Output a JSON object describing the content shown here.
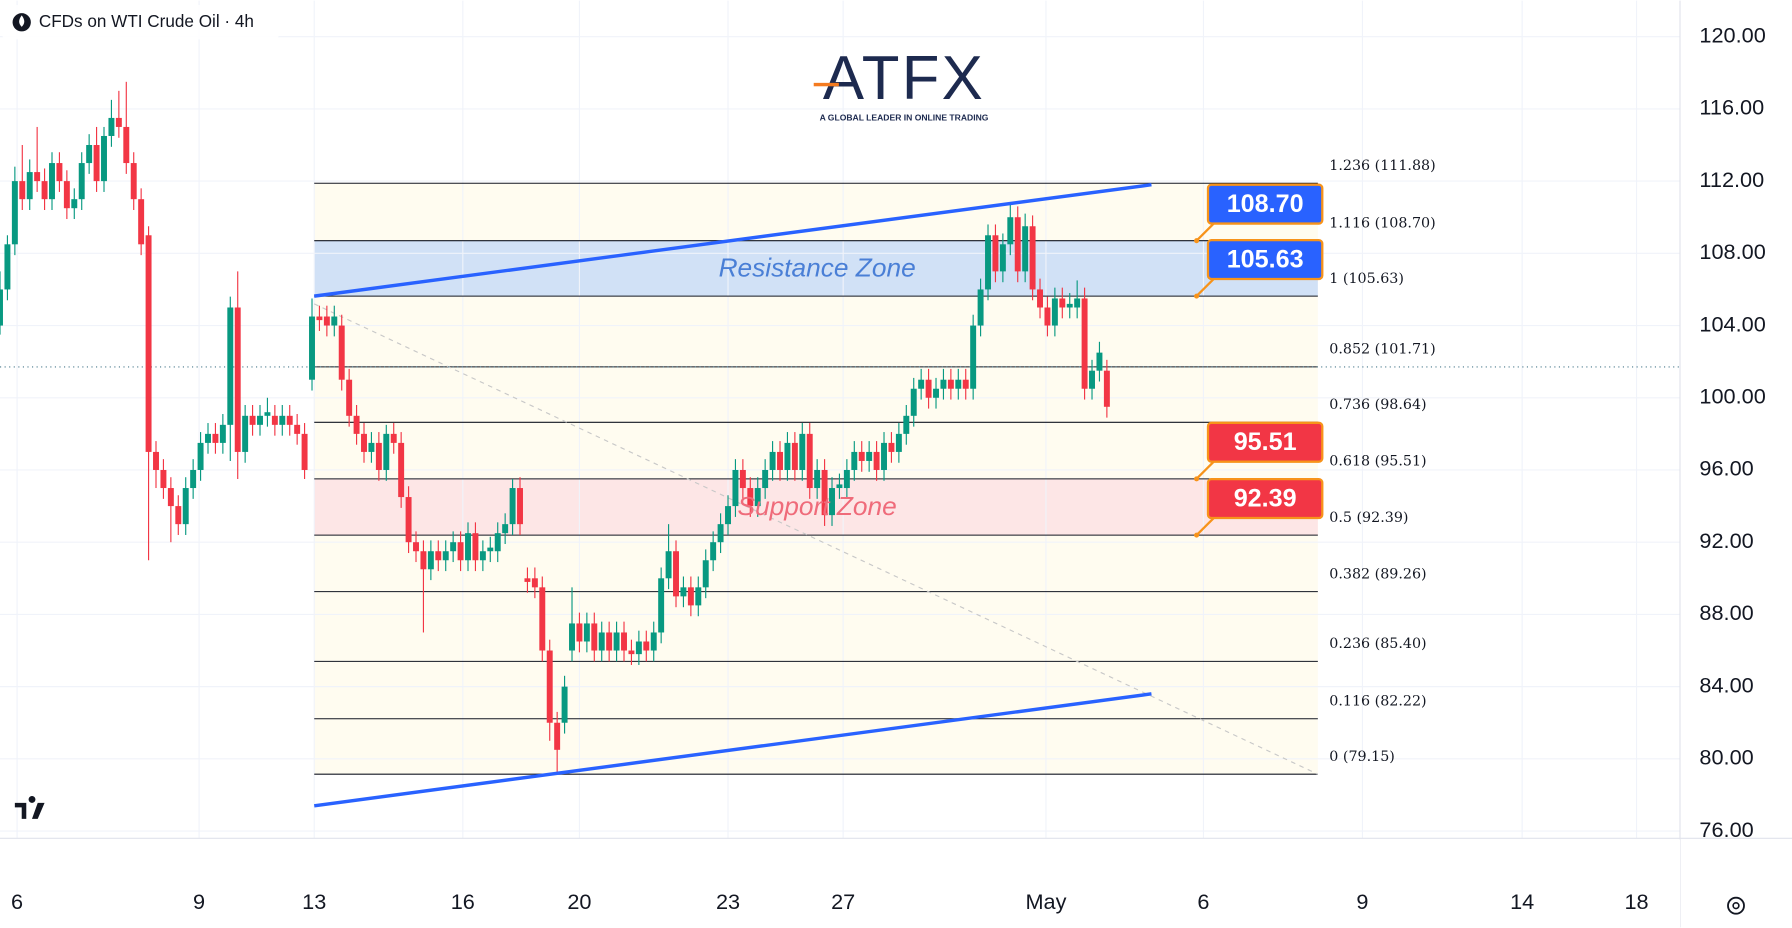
{
  "chart_data": {
    "type": "candlestick",
    "title": "CFDs on WTI Crude Oil · 4h",
    "brand": "ATFX",
    "brand_tagline": "A GLOBAL LEADER IN ONLINE TRADING",
    "xlim": [
      0,
      226.15
    ],
    "ylim": [
      75.6,
      122.0
    ],
    "grid": true,
    "up_color": "#089981",
    "down_color": "#f23645",
    "xticks": [
      {
        "value": 2.3,
        "label": "6"
      },
      {
        "value": 26.8,
        "label": "9"
      },
      {
        "value": 42.3,
        "label": "13"
      },
      {
        "value": 62.3,
        "label": "16"
      },
      {
        "value": 78,
        "label": "20"
      },
      {
        "value": 98,
        "label": "23"
      },
      {
        "value": 113.5,
        "label": "27"
      },
      {
        "value": 140.8,
        "label": "May"
      },
      {
        "value": 162,
        "label": "6"
      },
      {
        "value": 183.4,
        "label": "9"
      },
      {
        "value": 204.9,
        "label": "14"
      },
      {
        "value": 220.3,
        "label": "18"
      }
    ],
    "yticks": [
      {
        "value": 120,
        "label": "120.00"
      },
      {
        "value": 116,
        "label": "116.00"
      },
      {
        "value": 112,
        "label": "112.00"
      },
      {
        "value": 108,
        "label": "108.00"
      },
      {
        "value": 104,
        "label": "104.00"
      },
      {
        "value": 100,
        "label": "100.00"
      },
      {
        "value": 96,
        "label": "96.00"
      },
      {
        "value": 92,
        "label": "92.00"
      },
      {
        "value": 88,
        "label": "88.00"
      },
      {
        "value": 84,
        "label": "84.00"
      },
      {
        "value": 80,
        "label": "80.00"
      },
      {
        "value": 76,
        "label": "76.00"
      }
    ],
    "x": [
      0,
      1,
      2,
      3,
      4,
      5,
      6,
      7,
      8,
      9,
      10,
      11,
      12,
      13,
      14,
      15,
      16,
      17,
      18,
      19,
      20,
      21,
      22,
      23,
      24,
      25,
      26,
      27,
      28,
      29,
      30,
      31,
      32,
      33,
      34,
      35,
      36,
      37,
      38,
      39,
      40,
      41,
      42,
      43,
      44,
      45,
      46,
      47,
      48,
      49,
      50,
      51,
      52,
      53,
      54,
      55,
      56,
      57,
      58,
      59,
      60,
      61,
      62,
      63,
      64,
      65,
      66,
      67,
      68,
      69,
      70,
      71,
      72,
      73,
      74,
      75,
      76,
      77,
      78,
      79,
      80,
      81,
      82,
      83,
      84,
      85,
      86,
      87,
      88,
      89,
      90,
      91,
      92,
      93,
      94,
      95,
      96,
      97,
      98,
      99,
      100,
      101,
      102,
      103,
      104,
      105,
      106,
      107,
      108,
      109,
      110,
      111,
      112,
      113,
      114,
      115,
      116,
      117,
      118,
      119,
      120,
      121,
      122,
      123,
      124,
      125,
      126,
      127,
      128,
      129,
      130,
      131,
      132,
      133,
      134,
      135,
      136,
      137,
      138,
      139,
      140,
      141,
      142,
      143,
      144,
      145,
      146,
      147,
      148,
      149
    ],
    "open": [
      104,
      106,
      108.5,
      112,
      111,
      112.5,
      112,
      111,
      113,
      112,
      110.5,
      111,
      113,
      114,
      112,
      114.5,
      115.5,
      115,
      113,
      111,
      109,
      97,
      96,
      95,
      94,
      93,
      95,
      96,
      97.5,
      98,
      97.5,
      98.5,
      105,
      97,
      99,
      98.5,
      99,
      99,
      98.5,
      99,
      98.5,
      98,
      101,
      104.5,
      104.5,
      104,
      104,
      101,
      99,
      98,
      97,
      97.5,
      96,
      98,
      97.5,
      94.5,
      92,
      91.5,
      90.5,
      91.5,
      91,
      91.5,
      92,
      91,
      92.5,
      91,
      91.5,
      91.5,
      92.5,
      93,
      95,
      90,
      90,
      89.5,
      86,
      82,
      82,
      86,
      87.5,
      86.5,
      87.5,
      86,
      87,
      86,
      87,
      86,
      85.8,
      86.5,
      86,
      87,
      90,
      91.5,
      89,
      89.5,
      88.5,
      89.5,
      91,
      92,
      93,
      94,
      96,
      95,
      94,
      95,
      96,
      97,
      96,
      97.5,
      96,
      98,
      95,
      96,
      93.5,
      95,
      95,
      96,
      97,
      96.5,
      97,
      96,
      97.5,
      97,
      98,
      99,
      100.5,
      101,
      100,
      100.5,
      101,
      100.5,
      101,
      100.5,
      104,
      106,
      109,
      107,
      108.5,
      110,
      107,
      109.5,
      106,
      105,
      104,
      105.5,
      105,
      105,
      105.5,
      100.5,
      101.5,
      101.5
    ],
    "high": [
      107,
      109,
      112.8,
      114,
      113.2,
      115,
      112.7,
      113.6,
      113.6,
      112.6,
      111.6,
      113.6,
      114.6,
      115,
      115,
      116.5,
      117,
      117.5,
      113.6,
      111.6,
      109.5,
      97.6,
      96.6,
      95.6,
      94.6,
      95.6,
      96.6,
      98.1,
      98.6,
      98.6,
      99.1,
      105.6,
      107,
      99.6,
      99.6,
      99.6,
      100,
      99.6,
      99.6,
      99.6,
      99.1,
      98.6,
      105.5,
      105.1,
      105.1,
      105.1,
      104.6,
      101.6,
      99.6,
      98.6,
      98.1,
      98.1,
      98.5,
      98.6,
      98.1,
      95.1,
      92.6,
      92.1,
      92.1,
      92.1,
      92.1,
      92.6,
      92.6,
      93.1,
      93.1,
      92.1,
      92.3,
      93.1,
      93.6,
      95.5,
      95.6,
      90.6,
      90.6,
      90.1,
      86.6,
      82.6,
      84.6,
      89.5,
      88.1,
      88.1,
      88.1,
      87.6,
      87.6,
      87.6,
      87.6,
      86.6,
      87.1,
      87.1,
      87.6,
      90.6,
      93,
      92.1,
      90.1,
      90.1,
      90.1,
      91.6,
      92.6,
      93.6,
      94.6,
      96.6,
      96.6,
      95.6,
      95.6,
      96.6,
      97.6,
      97.6,
      98.1,
      98.1,
      98.6,
      98.6,
      96.6,
      96.6,
      95.6,
      95.8,
      96.6,
      97.6,
      97.6,
      97.6,
      97.6,
      98.1,
      98.1,
      98.6,
      99.6,
      101.1,
      101.6,
      101.6,
      101.1,
      101.6,
      101.6,
      101.6,
      101.6,
      104.6,
      106.6,
      109.6,
      109.6,
      109.1,
      110.8,
      110.6,
      110.2,
      110.1,
      106.6,
      105.6,
      106.1,
      106.1,
      105.8,
      106.5,
      106.1,
      102.1,
      103.1,
      102.1
    ],
    "low": [
      103.5,
      105.4,
      107.9,
      110.4,
      110.4,
      111.4,
      110.4,
      110.4,
      111.4,
      109.9,
      109.9,
      110.4,
      112.4,
      111.4,
      111.4,
      113.9,
      114.4,
      112.4,
      110.4,
      107.9,
      91,
      95,
      94.4,
      92,
      92.4,
      92.4,
      94.4,
      95.4,
      96.9,
      96.9,
      96.9,
      96.5,
      95.5,
      96.4,
      97.9,
      97.9,
      98.4,
      97.9,
      97.9,
      97.9,
      97.4,
      95.5,
      100.4,
      103.7,
      103.4,
      103.4,
      100.4,
      98.4,
      97.4,
      96.4,
      96.4,
      95.4,
      95.4,
      96.9,
      93.9,
      91.4,
      90.9,
      87,
      89.9,
      90.4,
      90.4,
      90.9,
      90.4,
      90.4,
      90.4,
      90.4,
      90.9,
      90.9,
      91.9,
      92.4,
      92.4,
      89.2,
      88.9,
      85.4,
      81,
      79.2,
      81.4,
      85.4,
      85.9,
      85.9,
      85.4,
      85.4,
      85.4,
      85.4,
      85.4,
      85.2,
      85.2,
      85.4,
      85.4,
      86.4,
      89.4,
      88.4,
      88.4,
      87.9,
      87.9,
      88.9,
      90.4,
      91.4,
      92.4,
      93.4,
      94.4,
      93.4,
      93.4,
      94.4,
      95.4,
      95.4,
      95.4,
      95.4,
      95.4,
      94.4,
      94.4,
      92.9,
      92.9,
      94.4,
      94.4,
      95.4,
      95.9,
      95.9,
      95.4,
      95.4,
      96.4,
      96.4,
      97.4,
      98.4,
      99.9,
      99.4,
      99.4,
      99.9,
      99.9,
      99.9,
      99.9,
      99.9,
      103.4,
      105.4,
      106.4,
      106.4,
      107.9,
      106.4,
      106.4,
      105.4,
      104.4,
      103.4,
      103.4,
      104.4,
      104.4,
      104.4,
      99.9,
      99.9,
      100.9,
      98.9
    ],
    "close": [
      106,
      108.5,
      112,
      111,
      112.5,
      112,
      111,
      113,
      112,
      110.5,
      111,
      113,
      114,
      112,
      114.5,
      115.5,
      115,
      113,
      111,
      108.5,
      97,
      96,
      95,
      94,
      93,
      95,
      96,
      97.5,
      98,
      97.5,
      98.5,
      105,
      97,
      99,
      98.5,
      99,
      99.2,
      98.5,
      99,
      98.5,
      98,
      96,
      104.5,
      104.3,
      104,
      104.5,
      101,
      99,
      98,
      97,
      97.5,
      96,
      98,
      97.5,
      94.5,
      92,
      91.5,
      90.5,
      91.5,
      91,
      91.5,
      92,
      91,
      92.5,
      91,
      91.5,
      91.7,
      92.5,
      93,
      95,
      93,
      89.8,
      89.5,
      86,
      82,
      80.5,
      84,
      87.5,
      86.5,
      87.5,
      86,
      87,
      86,
      87,
      86,
      85.8,
      86.5,
      86,
      87,
      90,
      91.5,
      89,
      89.5,
      88.5,
      89.5,
      91,
      92,
      93,
      94,
      96,
      95,
      94,
      95,
      96,
      97,
      96,
      97.5,
      96,
      98,
      95,
      96,
      93.5,
      95,
      95.2,
      96,
      97,
      96.5,
      97,
      96,
      97.5,
      97,
      98,
      99,
      100.5,
      101,
      100,
      100.5,
      101,
      100.5,
      101,
      100.5,
      104,
      106,
      109,
      107,
      108.5,
      110,
      107,
      109.5,
      106,
      105,
      104,
      105.5,
      105,
      105.2,
      105.5,
      100.5,
      101.5,
      102.5,
      99.5
    ],
    "current_price": 101.71,
    "fib_x": [
      42.3,
      177.4
    ],
    "fib_levels": [
      {
        "value": 111.88,
        "label": "1.236 (111.88)"
      },
      {
        "value": 108.7,
        "label": "1.116 (108.70)"
      },
      {
        "value": 105.63,
        "label": "1 (105.63)"
      },
      {
        "value": 101.71,
        "label": "0.852 (101.71)"
      },
      {
        "value": 98.64,
        "label": "0.736 (98.64)"
      },
      {
        "value": 95.51,
        "label": "0.618 (95.51)"
      },
      {
        "value": 92.39,
        "label": "0.5 (92.39)"
      },
      {
        "value": 89.26,
        "label": "0.382 (89.26)"
      },
      {
        "value": 85.4,
        "label": "0.236 (85.40)"
      },
      {
        "value": 82.22,
        "label": "0.116 (82.22)"
      },
      {
        "value": 79.15,
        "label": "0 (79.15)"
      }
    ],
    "zones": [
      {
        "label": "Resistance Zone",
        "range": [
          105.63,
          108.7
        ],
        "color": "#c9dcf7",
        "text_color": "#4a7fd6"
      },
      {
        "label": "Support Zone",
        "range": [
          92.39,
          95.51
        ],
        "color": "#fde2e4",
        "text_color": "#ef6b7a"
      }
    ],
    "price_badges": [
      {
        "value": 108.7,
        "label": "108.70",
        "color": "#2962ff"
      },
      {
        "value": 105.63,
        "label": "105.63",
        "color": "#2962ff"
      },
      {
        "value": 95.51,
        "label": "95.51",
        "color": "#f23645"
      },
      {
        "value": 92.39,
        "label": "92.39",
        "color": "#f23645"
      }
    ],
    "trendlines": [
      {
        "x": [
          42.3,
          155
        ],
        "y": [
          105.63,
          111.8
        ],
        "color": "#2962ff"
      },
      {
        "x": [
          42.3,
          155
        ],
        "y": [
          77.4,
          83.6
        ],
        "color": "#2962ff"
      }
    ],
    "diagonal": {
      "x": [
        42.3,
        177.4
      ],
      "y": [
        105.2,
        79.15
      ]
    }
  }
}
